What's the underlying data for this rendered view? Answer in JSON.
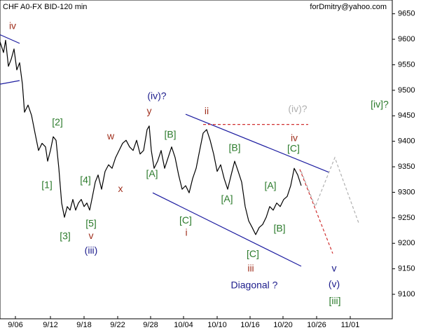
{
  "chart_data": {
    "type": "line",
    "title": "CHF A0-FX BID-120 min",
    "credit": "forDmitry@yahoo.com",
    "xlim": [
      0,
      560
    ],
    "ylim": [
      9052,
      9677
    ],
    "yticks": [
      9100,
      9150,
      9200,
      9250,
      9300,
      9350,
      9400,
      9450,
      9500,
      9550,
      9600,
      9650
    ],
    "xticks": [
      {
        "value": 22,
        "label": "9/06"
      },
      {
        "value": 72,
        "label": "9/12"
      },
      {
        "value": 120,
        "label": "9/18"
      },
      {
        "value": 168,
        "label": "9/22"
      },
      {
        "value": 215,
        "label": "9/28"
      },
      {
        "value": 262,
        "label": "10/04"
      },
      {
        "value": 310,
        "label": "10/10"
      },
      {
        "value": 357,
        "label": "10/16"
      },
      {
        "value": 404,
        "label": "10/20"
      },
      {
        "value": 452,
        "label": "10/26"
      },
      {
        "value": 500,
        "label": "11/01"
      }
    ],
    "x": [
      0,
      5,
      8,
      12,
      16,
      20,
      24,
      28,
      32,
      35,
      40,
      45,
      50,
      55,
      60,
      65,
      68,
      72,
      76,
      80,
      84,
      88,
      92,
      96,
      100,
      104,
      108,
      112,
      116,
      120,
      124,
      128,
      132,
      136,
      140,
      145,
      150,
      155,
      160,
      165,
      170,
      175,
      180,
      185,
      190,
      195,
      200,
      205,
      210,
      213,
      216,
      220,
      225,
      230,
      235,
      240,
      245,
      250,
      255,
      260,
      265,
      270,
      275,
      280,
      285,
      290,
      295,
      300,
      305,
      310,
      315,
      320,
      325,
      330,
      335,
      340,
      345,
      350,
      355,
      360,
      365,
      370,
      375,
      380,
      385,
      390,
      395,
      400,
      405,
      410,
      415,
      420,
      425,
      430
    ],
    "series": [
      {
        "color": "#000000",
        "values": [
          9595,
          9574,
          9598,
          9547,
          9561,
          9581,
          9540,
          9554,
          9512,
          9457,
          9471,
          9451,
          9416,
          9382,
          9396,
          9389,
          9361,
          9382,
          9409,
          9402,
          9347,
          9279,
          9251,
          9272,
          9265,
          9286,
          9265,
          9279,
          9286,
          9272,
          9279,
          9265,
          9292,
          9320,
          9334,
          9306,
          9341,
          9354,
          9347,
          9368,
          9382,
          9396,
          9402,
          9389,
          9382,
          9402,
          9375,
          9382,
          9423,
          9430,
          9382,
          9347,
          9361,
          9382,
          9347,
          9368,
          9389,
          9368,
          9334,
          9306,
          9313,
          9299,
          9327,
          9347,
          9382,
          9416,
          9423,
          9402,
          9375,
          9341,
          9354,
          9327,
          9306,
          9334,
          9361,
          9341,
          9320,
          9272,
          9244,
          9231,
          9217,
          9231,
          9237,
          9251,
          9272,
          9265,
          9279,
          9272,
          9286,
          9292,
          9313,
          9347,
          9334,
          9313
        ]
      }
    ],
    "lines": [
      {
        "color": "#1c1ca0",
        "dashed": false,
        "x": [
          265,
          470
        ],
        "y": [
          9453,
          9339
        ]
      },
      {
        "color": "#1c1ca0",
        "dashed": false,
        "x": [
          218,
          430
        ],
        "y": [
          9299,
          9155
        ]
      },
      {
        "color": "#1c1ca0",
        "dashed": false,
        "x": [
          0,
          28
        ],
        "y": [
          9609,
          9592
        ]
      },
      {
        "color": "#1c1ca0",
        "dashed": false,
        "x": [
          0,
          28
        ],
        "y": [
          9512,
          9519
        ]
      },
      {
        "color": "#d03030",
        "dashed": true,
        "x": [
          290,
          440
        ],
        "y": [
          9433,
          9433
        ]
      },
      {
        "color": "#d03030",
        "dashed": true,
        "x": [
          428,
          475
        ],
        "y": [
          9345,
          9180
        ]
      },
      {
        "color": "#b0b0b0",
        "dashed": true,
        "x": [
          430,
          450,
          478,
          512
        ],
        "y": [
          9341,
          9272,
          9368,
          9240
        ]
      }
    ],
    "annotations": [
      {
        "text": "iv",
        "x": 18,
        "y": 9625,
        "color": "#a0301e"
      },
      {
        "text": "[2]",
        "x": 82,
        "y": 9436,
        "color": "#2a7a2a"
      },
      {
        "text": "[1]",
        "x": 67,
        "y": 9313,
        "color": "#2a7a2a"
      },
      {
        "text": "[4]",
        "x": 122,
        "y": 9323,
        "color": "#2a7a2a"
      },
      {
        "text": "w",
        "x": 158,
        "y": 9409,
        "color": "#a0301e"
      },
      {
        "text": "x",
        "x": 172,
        "y": 9306,
        "color": "#a0301e"
      },
      {
        "text": "[3]",
        "x": 93,
        "y": 9213,
        "color": "#2a7a2a"
      },
      {
        "text": "[5]",
        "x": 130,
        "y": 9238,
        "color": "#2a7a2a"
      },
      {
        "text": "v",
        "x": 130,
        "y": 9214,
        "color": "#a0301e"
      },
      {
        "text": "(iii)",
        "x": 130,
        "y": 9185,
        "color": "#1c1c8c"
      },
      {
        "text": "(iv)?",
        "x": 224,
        "y": 9488,
        "color": "#1c1c8c"
      },
      {
        "text": "y",
        "x": 213,
        "y": 9458,
        "color": "#a0301e"
      },
      {
        "text": "[B]",
        "x": 243,
        "y": 9412,
        "color": "#2a7a2a"
      },
      {
        "text": "[A]",
        "x": 217,
        "y": 9335,
        "color": "#2a7a2a"
      },
      {
        "text": "ii",
        "x": 295,
        "y": 9458,
        "color": "#a0301e"
      },
      {
        "text": "[B]",
        "x": 335,
        "y": 9386,
        "color": "#2a7a2a"
      },
      {
        "text": "[A]",
        "x": 324,
        "y": 9286,
        "color": "#2a7a2a"
      },
      {
        "text": "[C]",
        "x": 265,
        "y": 9244,
        "color": "#2a7a2a"
      },
      {
        "text": "i",
        "x": 266,
        "y": 9220,
        "color": "#a0301e"
      },
      {
        "text": "(iv)?",
        "x": 425,
        "y": 9462,
        "color": "#b0b0b0"
      },
      {
        "text": "iv",
        "x": 420,
        "y": 9405,
        "color": "#a0301e"
      },
      {
        "text": "[C]",
        "x": 419,
        "y": 9385,
        "color": "#2a7a2a"
      },
      {
        "text": "[A]",
        "x": 386,
        "y": 9312,
        "color": "#2a7a2a"
      },
      {
        "text": "[B]",
        "x": 399,
        "y": 9228,
        "color": "#2a7a2a"
      },
      {
        "text": "[C]",
        "x": 361,
        "y": 9178,
        "color": "#2a7a2a"
      },
      {
        "text": "iii",
        "x": 358,
        "y": 9150,
        "color": "#a0301e"
      },
      {
        "text": "Diagonal ?",
        "x": 363,
        "y": 9117,
        "color": "#1c1c8c"
      },
      {
        "text": "v",
        "x": 477,
        "y": 9150,
        "color": "#1c1c8c"
      },
      {
        "text": "(v)",
        "x": 477,
        "y": 9119,
        "color": "#1c1c8c"
      },
      {
        "text": "[iii]",
        "x": 478,
        "y": 9086,
        "color": "#2a7a2a"
      },
      {
        "text": "[iv]?",
        "x": 542,
        "y": 9471,
        "color": "#2a7a2a"
      }
    ]
  }
}
